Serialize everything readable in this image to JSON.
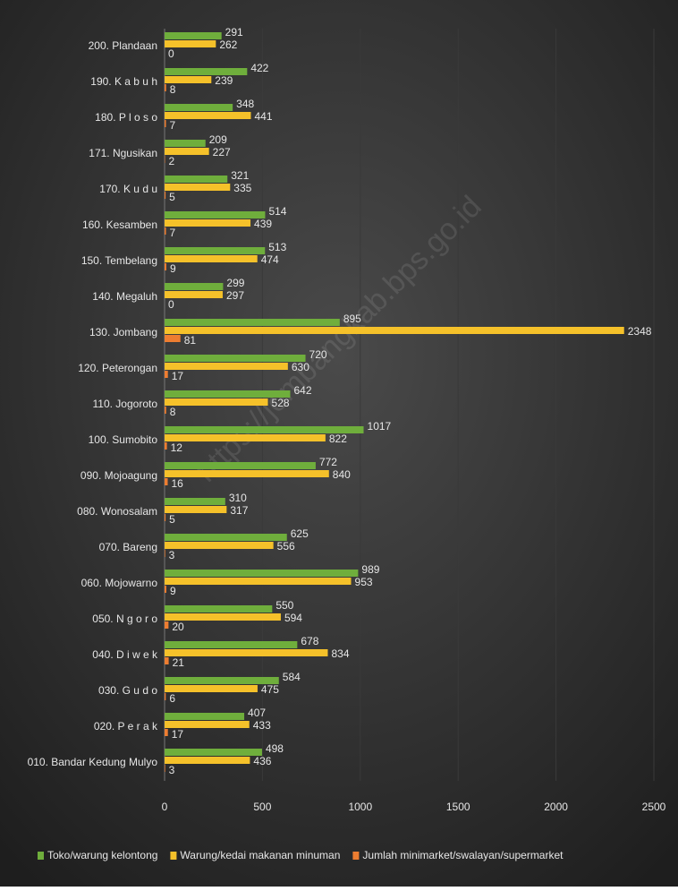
{
  "chart_data": {
    "type": "bar",
    "orientation": "horizontal",
    "watermark": "https://jombangkab.bps.go.id",
    "categories": [
      "200. Plandaan",
      "190. K a b u h",
      "180. P l o s o",
      "171. Ngusikan",
      "170. K u d u",
      "160. Kesamben",
      "150. Tembelang",
      "140. Megaluh",
      "130. Jombang",
      "120. Peterongan",
      "110. Jogoroto",
      "100. Sumobito",
      "090. Mojoagung",
      "080. Wonosalam",
      "070. Bareng",
      "060. Mojowarno",
      "050. N g o r o",
      "040. D i w e k",
      "030. G u d o",
      "020. P e r a k",
      "010. Bandar Kedung Mulyo"
    ],
    "series": [
      {
        "name": "Toko/warung kelontong",
        "color": "#6fae3c",
        "values": [
          291,
          422,
          348,
          209,
          321,
          514,
          513,
          299,
          895,
          720,
          642,
          1017,
          772,
          310,
          625,
          989,
          550,
          678,
          584,
          407,
          498
        ]
      },
      {
        "name": "Warung/kedai makanan minuman",
        "color": "#f5c12a",
        "values": [
          262,
          239,
          441,
          227,
          335,
          439,
          474,
          297,
          2348,
          630,
          528,
          822,
          840,
          317,
          556,
          953,
          594,
          834,
          475,
          433,
          436
        ]
      },
      {
        "name": "Jumlah minimarket/swalayan/supermarket",
        "color": "#ed7d31",
        "values": [
          0,
          8,
          7,
          2,
          5,
          7,
          9,
          0,
          81,
          17,
          8,
          12,
          16,
          5,
          3,
          9,
          20,
          21,
          6,
          17,
          3
        ]
      }
    ],
    "xlim": [
      0,
      2500
    ],
    "xticks": [
      0,
      500,
      1000,
      1500,
      2000,
      2500
    ],
    "grid": true,
    "legend": "bottom"
  }
}
